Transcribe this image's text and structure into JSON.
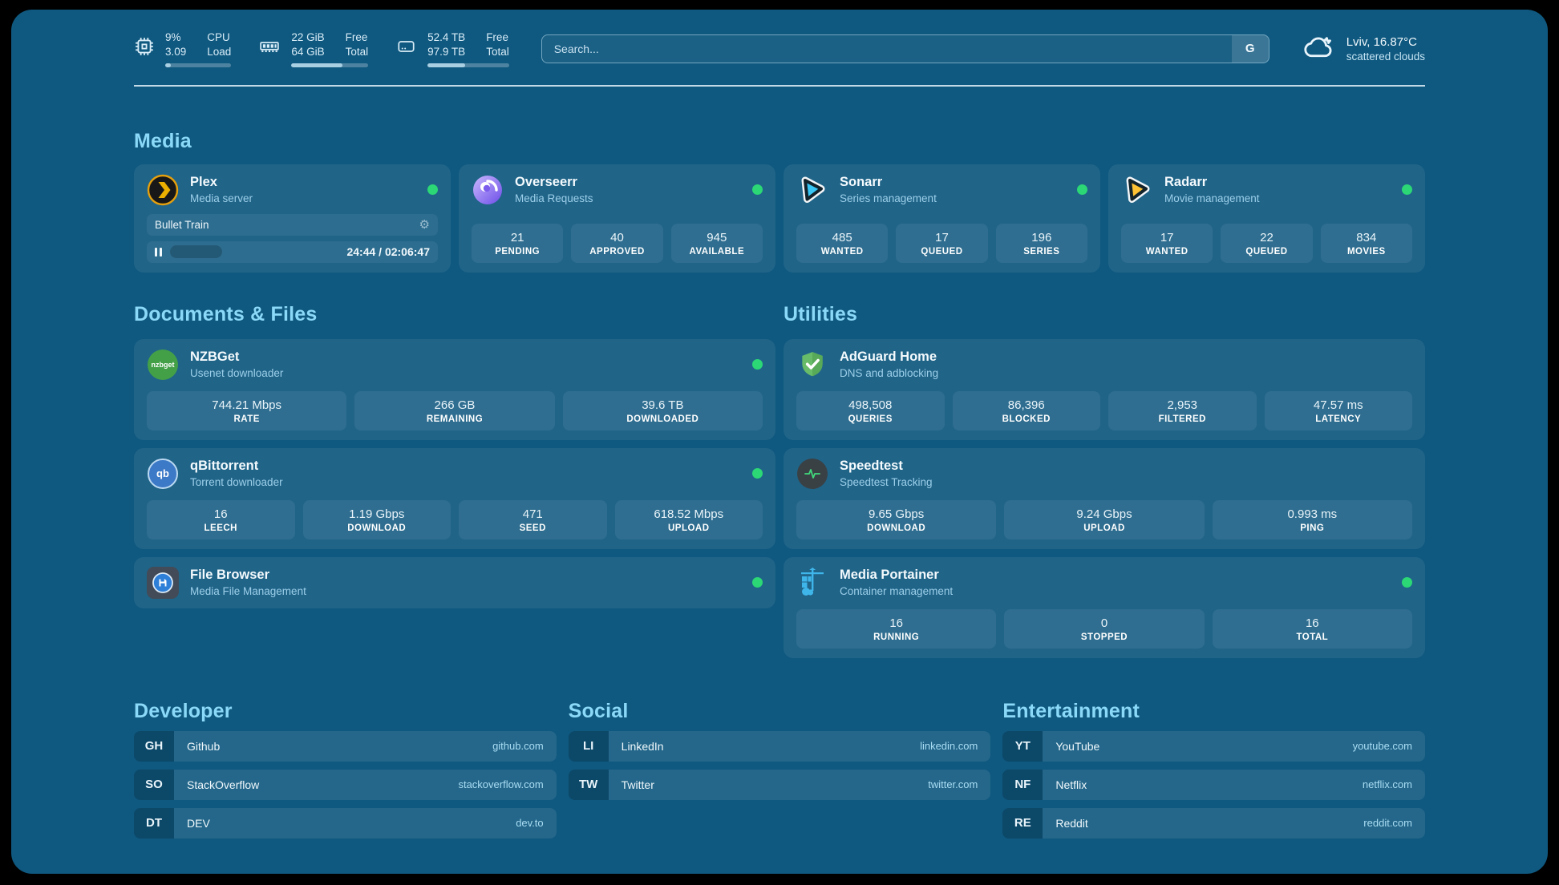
{
  "colors": {
    "status_online": "#2BD875",
    "accent": "#8BD9F8"
  },
  "header": {
    "stats": [
      {
        "icon": "cpu-icon",
        "value1": "9%",
        "value2": "3.09",
        "label1": "CPU",
        "label2": "Load",
        "progress": 9
      },
      {
        "icon": "memory-icon",
        "value1": "22 GiB",
        "value2": "64 GiB",
        "label1": "Free",
        "label2": "Total",
        "progress": 66
      },
      {
        "icon": "disk-icon",
        "value1": "52.4 TB",
        "value2": "97.9 TB",
        "label1": "Free",
        "label2": "Total",
        "progress": 46
      }
    ],
    "search": {
      "placeholder": "Search...",
      "button_label": "G"
    },
    "weather": {
      "location": "Lviv, 16.87°C",
      "condition": "scattered clouds"
    }
  },
  "media": {
    "title": "Media",
    "plex": {
      "name": "Plex",
      "desc": "Media server",
      "now_playing": "Bullet Train",
      "time": "24:44 / 02:06:47",
      "progress": 19
    },
    "overseerr": {
      "name": "Overseerr",
      "desc": "Media Requests",
      "stats": [
        {
          "value": "21",
          "label": "PENDING"
        },
        {
          "value": "40",
          "label": "APPROVED"
        },
        {
          "value": "945",
          "label": "AVAILABLE"
        }
      ]
    },
    "sonarr": {
      "name": "Sonarr",
      "desc": "Series management",
      "stats": [
        {
          "value": "485",
          "label": "WANTED"
        },
        {
          "value": "17",
          "label": "QUEUED"
        },
        {
          "value": "196",
          "label": "SERIES"
        }
      ]
    },
    "radarr": {
      "name": "Radarr",
      "desc": "Movie management",
      "stats": [
        {
          "value": "17",
          "label": "WANTED"
        },
        {
          "value": "22",
          "label": "QUEUED"
        },
        {
          "value": "834",
          "label": "MOVIES"
        }
      ]
    }
  },
  "documents": {
    "title": "Documents & Files",
    "nzbget": {
      "name": "NZBGet",
      "desc": "Usenet downloader",
      "icon_text": "nzbget",
      "stats": [
        {
          "value": "744.21 Mbps",
          "label": "RATE"
        },
        {
          "value": "266 GB",
          "label": "REMAINING"
        },
        {
          "value": "39.6 TB",
          "label": "DOWNLOADED"
        }
      ]
    },
    "qbittorrent": {
      "name": "qBittorrent",
      "desc": "Torrent downloader",
      "icon_text": "qb",
      "stats": [
        {
          "value": "16",
          "label": "LEECH"
        },
        {
          "value": "1.19 Gbps",
          "label": "DOWNLOAD"
        },
        {
          "value": "471",
          "label": "SEED"
        },
        {
          "value": "618.52 Mbps",
          "label": "UPLOAD"
        }
      ]
    },
    "filebrowser": {
      "name": "File Browser",
      "desc": "Media File Management"
    }
  },
  "utilities": {
    "title": "Utilities",
    "adguard": {
      "name": "AdGuard Home",
      "desc": "DNS and adblocking",
      "stats": [
        {
          "value": "498,508",
          "label": "QUERIES"
        },
        {
          "value": "86,396",
          "label": "BLOCKED"
        },
        {
          "value": "2,953",
          "label": "FILTERED"
        },
        {
          "value": "47.57 ms",
          "label": "LATENCY"
        }
      ]
    },
    "speedtest": {
      "name": "Speedtest",
      "desc": "Speedtest Tracking",
      "stats": [
        {
          "value": "9.65 Gbps",
          "label": "DOWNLOAD"
        },
        {
          "value": "9.24 Gbps",
          "label": "UPLOAD"
        },
        {
          "value": "0.993 ms",
          "label": "PING"
        }
      ]
    },
    "portainer": {
      "name": "Media Portainer",
      "desc": "Container management",
      "stats": [
        {
          "value": "16",
          "label": "RUNNING"
        },
        {
          "value": "0",
          "label": "STOPPED"
        },
        {
          "value": "16",
          "label": "TOTAL"
        }
      ]
    }
  },
  "bookmarks": [
    {
      "title": "Developer",
      "items": [
        {
          "abbr": "GH",
          "name": "Github",
          "url": "github.com"
        },
        {
          "abbr": "SO",
          "name": "StackOverflow",
          "url": "stackoverflow.com"
        },
        {
          "abbr": "DT",
          "name": "DEV",
          "url": "dev.to"
        }
      ]
    },
    {
      "title": "Social",
      "items": [
        {
          "abbr": "LI",
          "name": "LinkedIn",
          "url": "linkedin.com"
        },
        {
          "abbr": "TW",
          "name": "Twitter",
          "url": "twitter.com"
        }
      ]
    },
    {
      "title": "Entertainment",
      "items": [
        {
          "abbr": "YT",
          "name": "YouTube",
          "url": "youtube.com"
        },
        {
          "abbr": "NF",
          "name": "Netflix",
          "url": "netflix.com"
        },
        {
          "abbr": "RE",
          "name": "Reddit",
          "url": "reddit.com"
        }
      ]
    }
  ]
}
